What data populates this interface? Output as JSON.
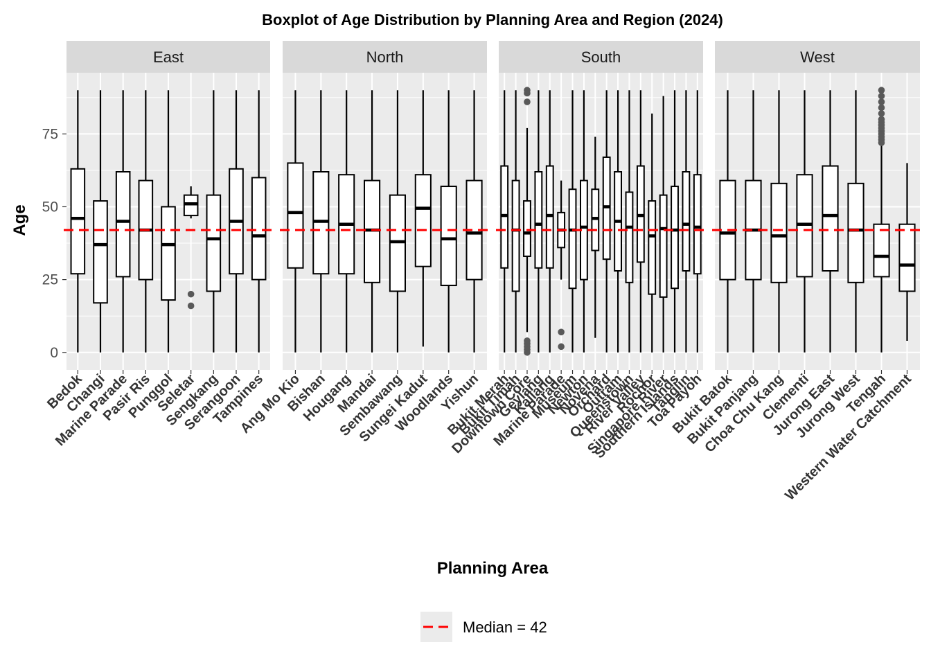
{
  "chart_data": {
    "type": "boxplot",
    "title": "Boxplot of Age Distribution by Planning Area and Region (2024)",
    "xlabel": "Planning Area",
    "ylabel": "Age",
    "ylim": [
      -6,
      96
    ],
    "y_ticks": [
      0,
      25,
      50,
      75
    ],
    "grid": true,
    "reference_line": {
      "value": 42,
      "label": "Median = 42",
      "color": "#ff0000",
      "style": "dashed"
    },
    "legend": {
      "position": "bottom",
      "entries": [
        "Median = 42"
      ]
    },
    "facets": [
      {
        "name": "East",
        "boxes": [
          {
            "label": "Bedok",
            "min": 0,
            "q1": 27,
            "median": 46,
            "q3": 63,
            "max": 90,
            "outliers": []
          },
          {
            "label": "Changi",
            "min": 0,
            "q1": 17,
            "median": 37,
            "q3": 52,
            "max": 90,
            "outliers": []
          },
          {
            "label": "Marine Parade",
            "min": 0,
            "q1": 26,
            "median": 45,
            "q3": 62,
            "max": 90,
            "outliers": []
          },
          {
            "label": "Pasir Ris",
            "min": 0,
            "q1": 25,
            "median": 42,
            "q3": 59,
            "max": 90,
            "outliers": []
          },
          {
            "label": "Punggol",
            "min": 0,
            "q1": 18,
            "median": 37,
            "q3": 50,
            "max": 90,
            "outliers": []
          },
          {
            "label": "Seletar",
            "min": 46,
            "q1": 47,
            "median": 51,
            "q3": 54,
            "max": 57,
            "outliers": [
              20,
              16
            ]
          },
          {
            "label": "Sengkang",
            "min": 0,
            "q1": 21,
            "median": 39,
            "q3": 54,
            "max": 90,
            "outliers": []
          },
          {
            "label": "Serangoon",
            "min": 0,
            "q1": 27,
            "median": 45,
            "q3": 63,
            "max": 90,
            "outliers": []
          },
          {
            "label": "Tampines",
            "min": 0,
            "q1": 25,
            "median": 40,
            "q3": 60,
            "max": 90,
            "outliers": []
          }
        ]
      },
      {
        "name": "North",
        "boxes": [
          {
            "label": "Ang Mo Kio",
            "min": 0,
            "q1": 29,
            "median": 48,
            "q3": 65,
            "max": 90,
            "outliers": []
          },
          {
            "label": "Bishan",
            "min": 0,
            "q1": 27,
            "median": 45,
            "q3": 62,
            "max": 90,
            "outliers": []
          },
          {
            "label": "Hougang",
            "min": 0,
            "q1": 27,
            "median": 44,
            "q3": 61,
            "max": 90,
            "outliers": []
          },
          {
            "label": "Mandai",
            "min": 0,
            "q1": 24,
            "median": 42,
            "q3": 59,
            "max": 90,
            "outliers": []
          },
          {
            "label": "Sembawang",
            "min": 0,
            "q1": 21,
            "median": 38,
            "q3": 54,
            "max": 90,
            "outliers": []
          },
          {
            "label": "Sungei Kadut",
            "min": 2,
            "q1": 29.5,
            "median": 49.5,
            "q3": 61,
            "max": 90,
            "outliers": []
          },
          {
            "label": "Woodlands",
            "min": 0,
            "q1": 23,
            "median": 39,
            "q3": 57,
            "max": 90,
            "outliers": []
          },
          {
            "label": "Yishun",
            "min": 0,
            "q1": 25,
            "median": 41,
            "q3": 59,
            "max": 90,
            "outliers": []
          }
        ]
      },
      {
        "name": "South",
        "boxes": [
          {
            "label": "Bukit Merah",
            "min": 0,
            "q1": 29,
            "median": 47,
            "q3": 64,
            "max": 90,
            "outliers": []
          },
          {
            "label": "Bukit Timah",
            "min": 0,
            "q1": 21,
            "median": 42,
            "q3": 59,
            "max": 90,
            "outliers": []
          },
          {
            "label": "Downtown Core",
            "min": 7,
            "q1": 33,
            "median": 41,
            "q3": 52,
            "max": 77,
            "outliers": [
              0,
              1,
              2,
              3,
              4,
              86,
              89,
              90
            ]
          },
          {
            "label": "Geylang",
            "min": 0,
            "q1": 29,
            "median": 44,
            "q3": 62,
            "max": 90,
            "outliers": []
          },
          {
            "label": "Kallang",
            "min": 0,
            "q1": 29,
            "median": 47,
            "q3": 64,
            "max": 90,
            "outliers": []
          },
          {
            "label": "Marine Parade",
            "min": 25,
            "q1": 36,
            "median": 42,
            "q3": 48,
            "max": 59,
            "outliers": [
              2,
              7
            ]
          },
          {
            "label": "Museum",
            "min": 0,
            "q1": 22,
            "median": 42,
            "q3": 56,
            "max": 90,
            "outliers": []
          },
          {
            "label": "Newton",
            "min": 0,
            "q1": 25,
            "median": 43,
            "q3": 59,
            "max": 90,
            "outliers": []
          },
          {
            "label": "Novena",
            "min": 5,
            "q1": 35,
            "median": 46,
            "q3": 56,
            "max": 74,
            "outliers": []
          },
          {
            "label": "Orchard",
            "min": 0,
            "q1": 32,
            "median": 50,
            "q3": 67,
            "max": 90,
            "outliers": []
          },
          {
            "label": "Outram",
            "min": 0,
            "q1": 28,
            "median": 45,
            "q3": 62,
            "max": 90,
            "outliers": []
          },
          {
            "label": "Queenstown",
            "min": 0,
            "q1": 24,
            "median": 43,
            "q3": 55,
            "max": 90,
            "outliers": []
          },
          {
            "label": "River Valley",
            "min": 0,
            "q1": 31,
            "median": 47,
            "q3": 64,
            "max": 90,
            "outliers": []
          },
          {
            "label": "Rochor",
            "min": 0,
            "q1": 20,
            "median": 40,
            "q3": 52,
            "max": 82,
            "outliers": []
          },
          {
            "label": "Singapore River",
            "min": 0,
            "q1": 19,
            "median": 42.5,
            "q3": 54,
            "max": 88,
            "outliers": []
          },
          {
            "label": "Southern Islands",
            "min": 0,
            "q1": 22,
            "median": 42,
            "q3": 57,
            "max": 90,
            "outliers": []
          },
          {
            "label": "Tanglin",
            "min": 0,
            "q1": 28,
            "median": 44,
            "q3": 62,
            "max": 90,
            "outliers": []
          },
          {
            "label": "Toa Payoh",
            "min": 0,
            "q1": 27,
            "median": 43,
            "q3": 61,
            "max": 90,
            "outliers": []
          }
        ]
      },
      {
        "name": "West",
        "boxes": [
          {
            "label": "Bukit Batok",
            "min": 0,
            "q1": 25,
            "median": 41,
            "q3": 59,
            "max": 90,
            "outliers": []
          },
          {
            "label": "Bukit Panjang",
            "min": 0,
            "q1": 25,
            "median": 42,
            "q3": 59,
            "max": 90,
            "outliers": []
          },
          {
            "label": "Choa Chu Kang",
            "min": 0,
            "q1": 24,
            "median": 40,
            "q3": 58,
            "max": 90,
            "outliers": []
          },
          {
            "label": "Clementi",
            "min": 0,
            "q1": 26,
            "median": 44,
            "q3": 61,
            "max": 90,
            "outliers": []
          },
          {
            "label": "Jurong East",
            "min": 0,
            "q1": 28,
            "median": 47,
            "q3": 64,
            "max": 90,
            "outliers": []
          },
          {
            "label": "Jurong West",
            "min": 0,
            "q1": 24,
            "median": 42,
            "q3": 58,
            "max": 90,
            "outliers": []
          },
          {
            "label": "Tengah",
            "min": 0,
            "q1": 26,
            "median": 33,
            "q3": 44,
            "max": 71,
            "outliers": [
              72,
              73,
              74,
              75,
              76,
              77,
              78,
              79,
              80,
              82,
              84,
              86,
              88,
              90
            ]
          },
          {
            "label": "Western Water Catchment",
            "min": 4,
            "q1": 21,
            "median": 30,
            "q3": 44,
            "max": 65,
            "outliers": []
          }
        ]
      }
    ]
  }
}
